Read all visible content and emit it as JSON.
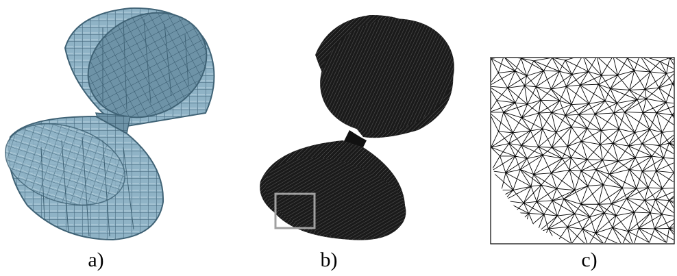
{
  "captions": {
    "a": "a)",
    "b": "b)",
    "c": "c)"
  },
  "colors": {
    "voxel_face": "#8fb3c6",
    "voxel_edge": "#3f6275",
    "voxel_shadow": "#5d8599",
    "mesh_dark": "#1a1a1a",
    "zoom_box": "#a0a0a0",
    "line": "#000000"
  },
  "icons": {
    "panel_a": "voxel-hourglass-icon",
    "panel_b": "mesh-hourglass-icon",
    "panel_c": "triangle-mesh-detail-icon",
    "zoom": "zoom-region-box-icon"
  }
}
